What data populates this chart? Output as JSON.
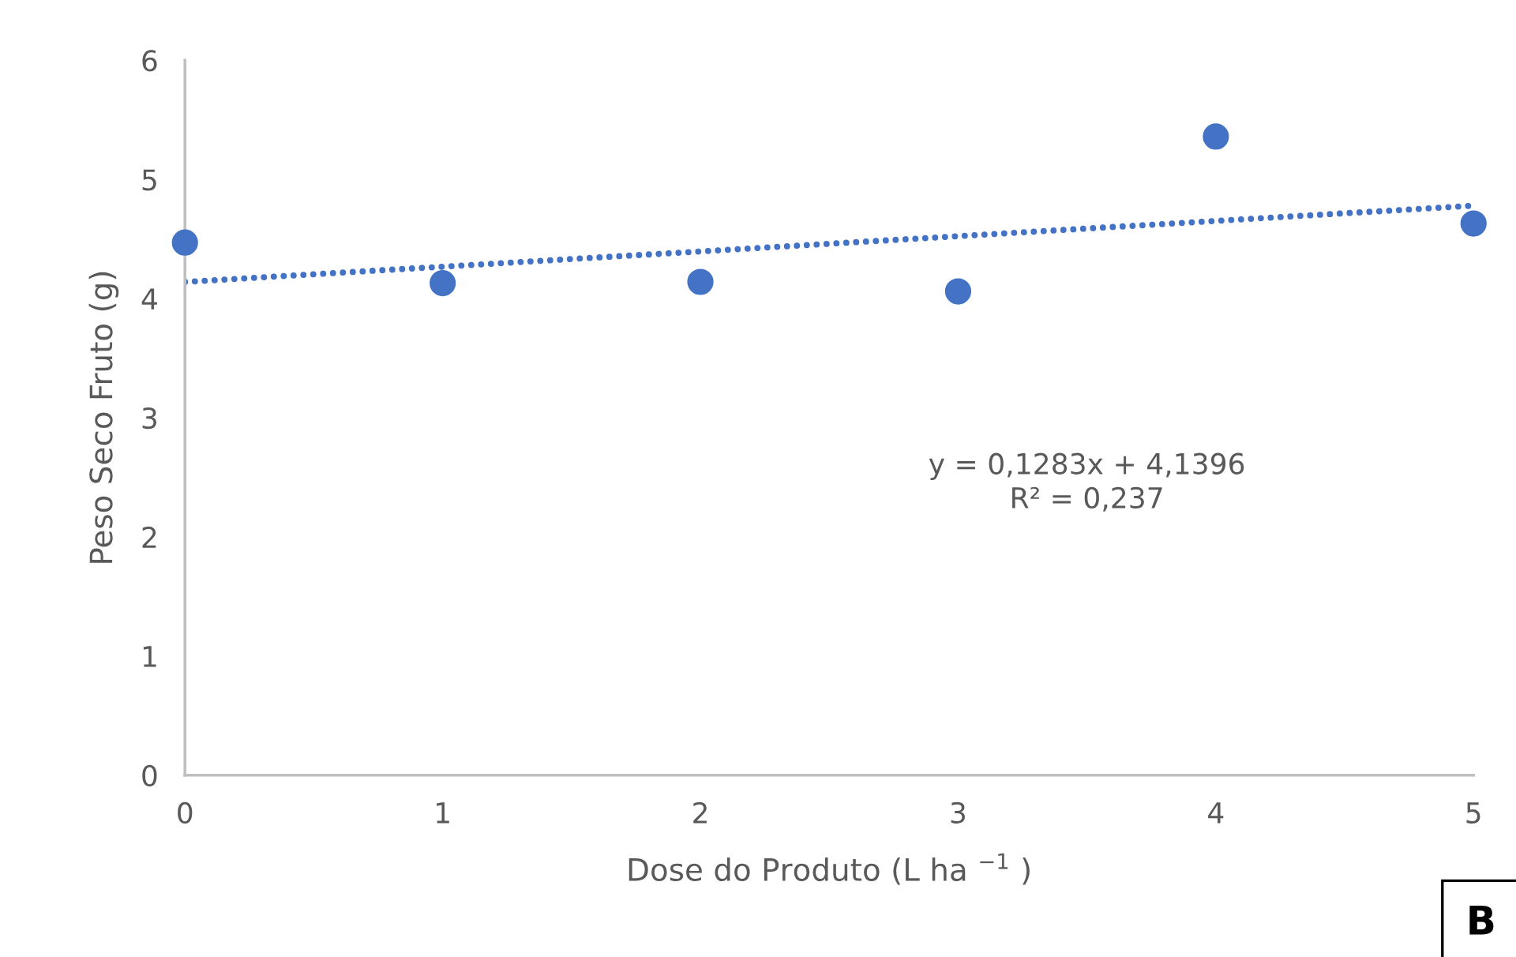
{
  "chart_data": {
    "type": "scatter",
    "xlabel": "Dose do Produto (L ha $^{−1}$ )",
    "ylabel": "Peso Seco Fruto (g)",
    "xlim": [
      0,
      5
    ],
    "xticks": [
      0,
      1,
      2,
      3,
      4,
      5
    ],
    "ylim": [
      0,
      6
    ],
    "yticks": [
      0,
      1,
      2,
      3,
      4,
      5,
      6
    ],
    "grid": false,
    "legend": false,
    "series": [
      {
        "color": "#4472c4",
        "marker": "circle",
        "x": [
          0,
          1,
          2,
          3,
          4,
          5
        ],
        "values": [
          4.47,
          4.13,
          4.14,
          4.06,
          5.36,
          4.63
        ]
      },
      {
        "type": "line",
        "color": "#4472c4",
        "line_style": "dotted",
        "marker": "none",
        "x": [
          0,
          5
        ],
        "values": [
          4.14,
          4.78
        ]
      }
    ],
    "annotations": [
      "y = 0,1283x + 4,1396\nR² = 0,237",
      "B"
    ]
  }
}
